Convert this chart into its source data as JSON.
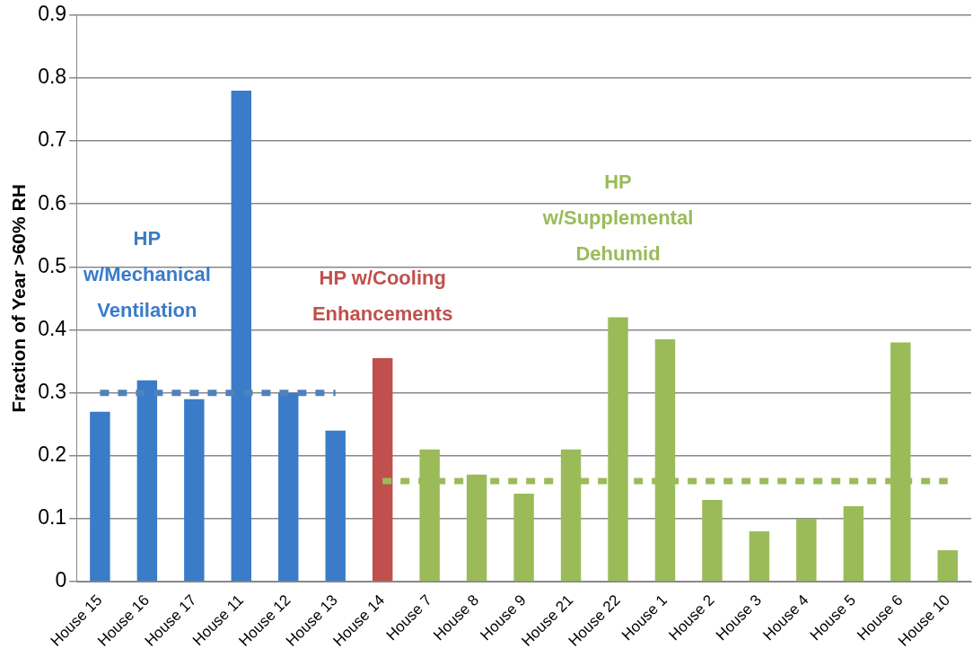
{
  "chart_data": {
    "type": "bar",
    "ylabel": "Fraction of Year >60% RH",
    "categories": [
      "House 15",
      "House 16",
      "House 17",
      "House 11",
      "House 12",
      "House 13",
      "House 14",
      "House 7",
      "House 8",
      "House 9",
      "House 21",
      "House 22",
      "House 1",
      "House 2",
      "House 3",
      "House 4",
      "House 5",
      "House 6",
      "House 10"
    ],
    "series": [
      {
        "name": "HP w/Mechanical Ventilation",
        "color": "#3a7cc8",
        "values": [
          0.27,
          0.32,
          0.29,
          0.78,
          0.3,
          0.24,
          null,
          null,
          null,
          null,
          null,
          null,
          null,
          null,
          null,
          null,
          null,
          null,
          null
        ]
      },
      {
        "name": "HP w/Cooling Enhancements",
        "color": "#c0504d",
        "values": [
          null,
          null,
          null,
          null,
          null,
          null,
          0.355,
          null,
          null,
          null,
          null,
          null,
          null,
          null,
          null,
          null,
          null,
          null,
          null
        ]
      },
      {
        "name": "HP w/Supplemental Dehumid",
        "color": "#9bbb59",
        "values": [
          null,
          null,
          null,
          null,
          null,
          null,
          null,
          0.21,
          0.17,
          0.14,
          0.21,
          0.42,
          0.385,
          0.13,
          0.08,
          0.1,
          0.12,
          0.38,
          0.05
        ]
      },
      {
        "type": "line",
        "color": "#4f81bd",
        "line_style": "dotted",
        "values": [
          0.3,
          0.3,
          0.3,
          0.3,
          0.3,
          0.3,
          null,
          null,
          null,
          null,
          null,
          null,
          null,
          null,
          null,
          null,
          null,
          null,
          null
        ]
      },
      {
        "type": "line",
        "color": "#9bbb59",
        "line_style": "dotted",
        "values": [
          null,
          null,
          null,
          null,
          null,
          null,
          0.16,
          0.16,
          0.16,
          0.16,
          0.16,
          0.16,
          0.16,
          0.16,
          0.16,
          0.16,
          0.16,
          0.16,
          0.16
        ]
      }
    ],
    "ylim": [
      0,
      0.9
    ],
    "yticks": [
      0,
      0.1,
      0.2,
      0.3,
      0.4,
      0.5,
      0.6,
      0.7,
      0.8,
      0.9
    ],
    "grid": "y",
    "legend": false,
    "marker": "none"
  }
}
